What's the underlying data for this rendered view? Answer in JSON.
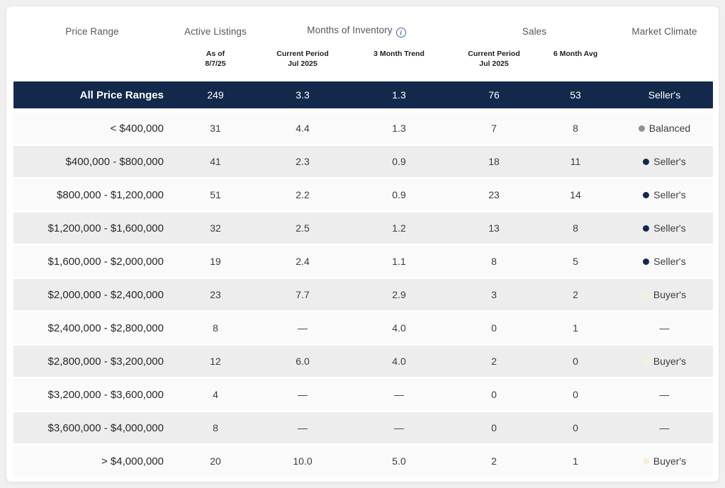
{
  "colors": {
    "navy": "#12294b",
    "row_light": "#fafafa",
    "row_gray": "#ededed",
    "dot_gray": "#8b9198",
    "dot_navy": "#12294b",
    "dot_cream": "#f7efdc"
  },
  "header": {
    "groups": {
      "price_range": "Price Range",
      "active_listings": "Active Listings",
      "months_of_inventory": "Months of Inventory",
      "sales": "Sales",
      "market_climate": "Market Climate"
    },
    "info_icon_glyph": "i",
    "subheaders": {
      "active_line1": "As of",
      "active_line2": "8/7/25",
      "moi_current_line1": "Current Period",
      "moi_current_line2": "Jul 2025",
      "moi_trend": "3 Month Trend",
      "sales_current_line1": "Current Period",
      "sales_current_line2": "Jul 2025",
      "sales_avg": "6 Month Avg"
    }
  },
  "rows": [
    {
      "price_range": "All Price Ranges",
      "active_listings": "249",
      "moi_current": "3.3",
      "moi_trend": "1.3",
      "sales_current": "76",
      "sales_avg": "53",
      "climate": "Seller's",
      "dot_color": "",
      "variant": "navy"
    },
    {
      "price_range": "< $400,000",
      "active_listings": "31",
      "moi_current": "4.4",
      "moi_trend": "1.3",
      "sales_current": "7",
      "sales_avg": "8",
      "climate": "Balanced",
      "dot_color": "#8b9198",
      "variant": "light"
    },
    {
      "price_range": "$400,000 - $800,000",
      "active_listings": "41",
      "moi_current": "2.3",
      "moi_trend": "0.9",
      "sales_current": "18",
      "sales_avg": "11",
      "climate": "Seller's",
      "dot_color": "#12294b",
      "variant": "gray"
    },
    {
      "price_range": "$800,000 - $1,200,000",
      "active_listings": "51",
      "moi_current": "2.2",
      "moi_trend": "0.9",
      "sales_current": "23",
      "sales_avg": "14",
      "climate": "Seller's",
      "dot_color": "#12294b",
      "variant": "light"
    },
    {
      "price_range": "$1,200,000 - $1,600,000",
      "active_listings": "32",
      "moi_current": "2.5",
      "moi_trend": "1.2",
      "sales_current": "13",
      "sales_avg": "8",
      "climate": "Seller's",
      "dot_color": "#12294b",
      "variant": "gray"
    },
    {
      "price_range": "$1,600,000 - $2,000,000",
      "active_listings": "19",
      "moi_current": "2.4",
      "moi_trend": "1.1",
      "sales_current": "8",
      "sales_avg": "5",
      "climate": "Seller's",
      "dot_color": "#12294b",
      "variant": "light"
    },
    {
      "price_range": "$2,000,000 - $2,400,000",
      "active_listings": "23",
      "moi_current": "7.7",
      "moi_trend": "2.9",
      "sales_current": "3",
      "sales_avg": "2",
      "climate": "Buyer's",
      "dot_color": "#f7efdc",
      "variant": "gray"
    },
    {
      "price_range": "$2,400,000 - $2,800,000",
      "active_listings": "8",
      "moi_current": "—",
      "moi_trend": "4.0",
      "sales_current": "0",
      "sales_avg": "1",
      "climate": "—",
      "dot_color": "",
      "variant": "light"
    },
    {
      "price_range": "$2,800,000 - $3,200,000",
      "active_listings": "12",
      "moi_current": "6.0",
      "moi_trend": "4.0",
      "sales_current": "2",
      "sales_avg": "0",
      "climate": "Buyer's",
      "dot_color": "#f7efdc",
      "variant": "gray"
    },
    {
      "price_range": "$3,200,000 - $3,600,000",
      "active_listings": "4",
      "moi_current": "—",
      "moi_trend": "—",
      "sales_current": "0",
      "sales_avg": "0",
      "climate": "—",
      "dot_color": "",
      "variant": "light"
    },
    {
      "price_range": "$3,600,000 - $4,000,000",
      "active_listings": "8",
      "moi_current": "—",
      "moi_trend": "—",
      "sales_current": "0",
      "sales_avg": "0",
      "climate": "—",
      "dot_color": "",
      "variant": "gray"
    },
    {
      "price_range": "> $4,000,000",
      "active_listings": "20",
      "moi_current": "10.0",
      "moi_trend": "5.0",
      "sales_current": "2",
      "sales_avg": "1",
      "climate": "Buyer's",
      "dot_color": "#f7efdc",
      "variant": "light"
    }
  ]
}
